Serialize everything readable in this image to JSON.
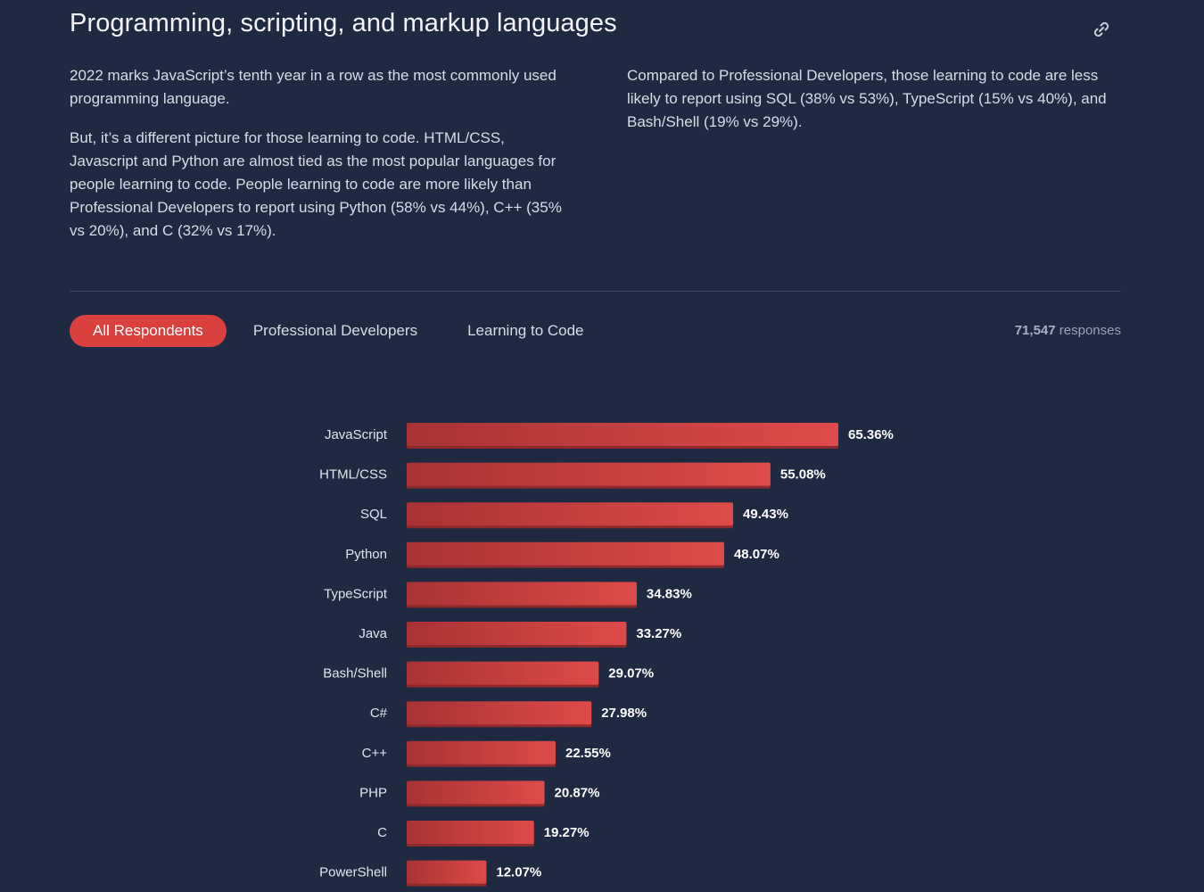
{
  "section": {
    "title": "Programming, scripting, and markup languages",
    "link_icon": "link-icon"
  },
  "intro": {
    "left_paragraphs": [
      "2022 marks JavaScript’s tenth year in a row as the most commonly used programming language.",
      "But, it’s a different picture for those learning to code. HTML/CSS, Javascript and Python are almost tied as the most popular languages for people learning to code. People learning to code are more likely than Professional Developers to report using Python (58% vs 44%), C++ (35% vs 20%), and C (32% vs 17%)."
    ],
    "right_paragraph": "Compared to Professional Developers, those learning to code are less likely to report using SQL (38% vs 53%), TypeScript (15% vs 40%), and Bash/Shell (19% vs 29%)."
  },
  "tabs": [
    {
      "label": "All Respondents",
      "active": true
    },
    {
      "label": "Professional Developers",
      "active": false
    },
    {
      "label": "Learning to Code",
      "active": false
    }
  ],
  "responses": {
    "count": "71,547",
    "label": "responses"
  },
  "colors": {
    "background": "#1f2a42",
    "accent": "#d9403e",
    "bar_start": "#a83234",
    "bar_end": "#de4b49"
  },
  "chart_data": {
    "type": "bar",
    "orientation": "horizontal",
    "title": "",
    "xlabel": "",
    "ylabel": "",
    "xlim": [
      0,
      100
    ],
    "categories": [
      "JavaScript",
      "HTML/CSS",
      "SQL",
      "Python",
      "TypeScript",
      "Java",
      "Bash/Shell",
      "C#",
      "C++",
      "PHP",
      "C",
      "PowerShell"
    ],
    "values": [
      65.36,
      55.08,
      49.43,
      48.07,
      34.83,
      33.27,
      29.07,
      27.98,
      22.55,
      20.87,
      19.27,
      12.07
    ],
    "value_labels": [
      "65.36%",
      "55.08%",
      "49.43%",
      "48.07%",
      "34.83%",
      "33.27%",
      "29.07%",
      "27.98%",
      "22.55%",
      "20.87%",
      "19.27%",
      "12.07%"
    ]
  }
}
